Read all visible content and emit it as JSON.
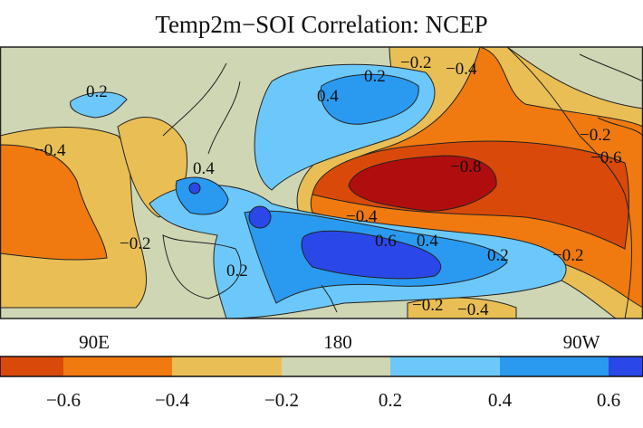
{
  "chart_data": {
    "type": "heatmap",
    "title": "Temp2m−SOI Correlation: NCEP",
    "x_ticks": [
      "90E",
      "180",
      "90W"
    ],
    "colorbar": {
      "tick_labels": [
        "−0.6",
        "−0.4",
        "−0.2",
        "0.2",
        "0.4",
        "0.6"
      ],
      "bins": [
        {
          "range": "< -0.6",
          "color": "#d94a0a"
        },
        {
          "range": "-0.6 to -0.4",
          "color": "#f07a10"
        },
        {
          "range": "-0.4 to -0.2",
          "color": "#e9be55"
        },
        {
          "range": "-0.2 to 0.2",
          "color": "#cfd6b4"
        },
        {
          "range": "0.2 to 0.4",
          "color": "#6cc8fa"
        },
        {
          "range": "0.4 to 0.6",
          "color": "#2a9af0"
        },
        {
          "range": "> 0.6",
          "color": "#2a48e8"
        }
      ]
    },
    "contour_labels": [
      "0.2",
      "−0.4",
      "0.4",
      "0.2",
      "−0.2",
      "0.4",
      "0.2",
      "−0.2",
      "−0.4",
      "−0.8",
      "−0.4",
      "0.6",
      "0.4",
      "−0.2",
      "−0.6",
      "0.2",
      "−0.2",
      "−0.2",
      "−0.4"
    ]
  }
}
